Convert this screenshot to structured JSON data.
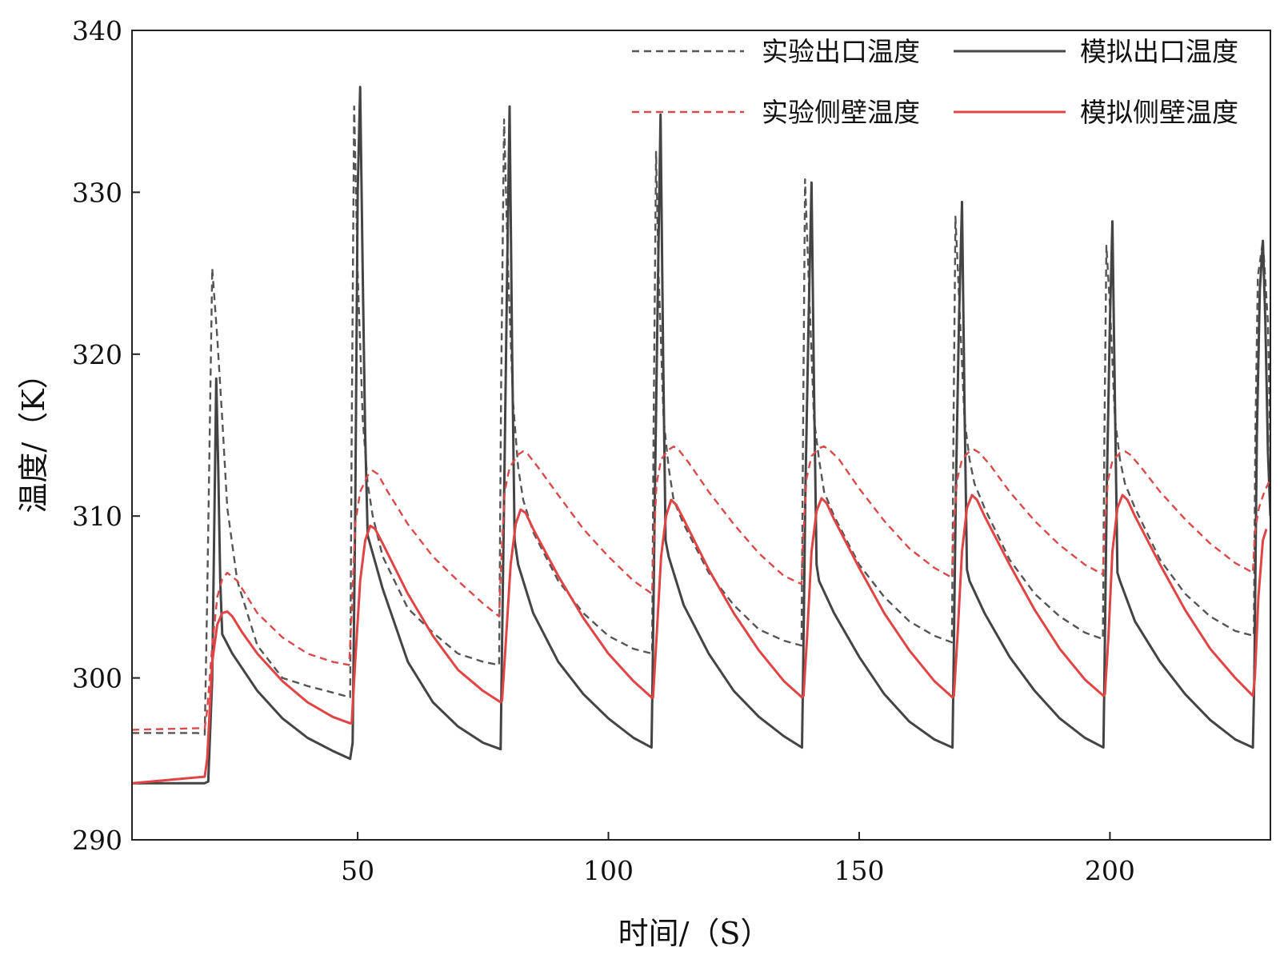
{
  "chart_data": {
    "type": "line",
    "xlabel": "时间/（S）",
    "ylabel": "温度/（K）",
    "xlim": [
      5,
      232
    ],
    "ylim": [
      290,
      340
    ],
    "xticks": [
      50,
      100,
      150,
      200
    ],
    "yticks": [
      290,
      300,
      310,
      320,
      330,
      340
    ],
    "grid": false,
    "legend_position": "top-right",
    "series": [
      {
        "name": "实验出口温度",
        "color": "#555555",
        "dash": true,
        "x": [
          5,
          18,
          19.5,
          20,
          21,
          22,
          23,
          24,
          26,
          30,
          35,
          40,
          45,
          48.5,
          48.8,
          49.3,
          50,
          51,
          52,
          53,
          55,
          60,
          65,
          70,
          75,
          78.2,
          78.6,
          79.2,
          80,
          81,
          82,
          83,
          85,
          90,
          95,
          100,
          105,
          108.7,
          109,
          109.5,
          110,
          111,
          112,
          113,
          115,
          120,
          125,
          130,
          135,
          138.5,
          138.8,
          139.2,
          140,
          141,
          142,
          143,
          145,
          150,
          155,
          160,
          165,
          168.5,
          168.8,
          169.2,
          170,
          171,
          172,
          173,
          175,
          180,
          185,
          190,
          195,
          198.6,
          198.9,
          199.3,
          200,
          201,
          202,
          203,
          205,
          210,
          215,
          220,
          225,
          228.7,
          229,
          229.5,
          230.5,
          231.5,
          232
        ],
        "y": [
          296.6,
          296.6,
          296.5,
          305,
          325.3,
          321,
          316,
          310.5,
          306,
          302,
          300,
          299.5,
          299.1,
          298.8,
          315,
          335.3,
          325,
          316,
          312,
          310,
          307.5,
          304.3,
          302.8,
          301.5,
          301,
          300.8,
          318,
          334.5,
          325,
          317,
          313,
          311,
          309,
          306,
          304,
          302.6,
          301.8,
          301.5,
          315,
          332.5,
          325,
          316,
          313,
          311,
          309.5,
          306.5,
          304.5,
          303,
          302.3,
          302,
          315,
          330.8,
          324,
          316,
          313.5,
          311.5,
          310,
          307,
          305,
          303.5,
          302.6,
          302.2,
          315,
          328.5,
          323,
          316,
          313.5,
          312,
          310.5,
          307.3,
          305.2,
          303.8,
          302.8,
          302.4,
          315,
          326.7,
          323,
          316,
          313.5,
          312,
          310.5,
          307.3,
          305.2,
          303.8,
          302.9,
          302.6,
          315,
          324.8,
          327,
          322,
          314
        ]
      },
      {
        "name": "模拟出口温度",
        "color": "#444444",
        "dash": false,
        "x": [
          5,
          19.5,
          20.2,
          21,
          21.8,
          22.2,
          22.6,
          23,
          25,
          30,
          35,
          40,
          45,
          48.5,
          49,
          49.5,
          50,
          50.5,
          51,
          51.5,
          52,
          55,
          60,
          65,
          70,
          75,
          78.5,
          78.7,
          79.2,
          79.8,
          80.3,
          80.8,
          81.3,
          82,
          85,
          90,
          95,
          100,
          105,
          108.6,
          108.8,
          109.3,
          109.9,
          110.4,
          110.9,
          111.4,
          112,
          115,
          120,
          125,
          130,
          135,
          138.6,
          138.8,
          139.3,
          139.9,
          140.5,
          141,
          141.5,
          142,
          145,
          150,
          155,
          160,
          165,
          168.6,
          168.8,
          169.3,
          169.9,
          170.5,
          171,
          171.5,
          172,
          175,
          180,
          185,
          190,
          195,
          198.7,
          198.9,
          199.4,
          200,
          200.5,
          201,
          201.5,
          202,
          205,
          210,
          215,
          220,
          225,
          228.5,
          228.8,
          229.3,
          229.9,
          230.5,
          231,
          231.5,
          232
        ],
        "y": [
          293.5,
          293.5,
          293.6,
          300,
          318.5,
          313,
          306,
          302.7,
          301.5,
          299.2,
          297.5,
          296.3,
          295.5,
          295,
          296,
          310,
          330,
          336.5,
          325,
          315,
          308.8,
          305.5,
          301,
          298.5,
          297,
          296,
          295.6,
          300,
          311,
          325,
          335.3,
          320,
          308.5,
          307,
          304,
          301,
          299,
          297.5,
          296.3,
          295.7,
          300,
          312,
          325,
          334.8,
          320,
          308.5,
          307.5,
          304.5,
          301.5,
          299.2,
          297.6,
          296.4,
          295.7,
          300,
          312,
          322,
          330.6,
          318,
          307,
          306,
          304,
          301.3,
          299,
          297.3,
          296.2,
          295.7,
          300,
          312,
          322,
          329.4,
          317,
          306.7,
          306,
          304,
          301.3,
          299.2,
          297.5,
          296.3,
          295.7,
          300,
          312,
          322,
          328.2,
          317,
          306.5,
          306,
          303.5,
          301,
          299,
          297.4,
          296.2,
          295.7,
          300,
          315,
          324,
          327,
          322,
          314,
          310
        ]
      },
      {
        "name": "实验侧壁温度",
        "color": "#d94a4a",
        "dash": true,
        "x": [
          5,
          19.5,
          20,
          21,
          22,
          23,
          24,
          26,
          30,
          35,
          40,
          45,
          48.3,
          48.8,
          49.5,
          50.5,
          52,
          53,
          54,
          56,
          60,
          65,
          70,
          75,
          78.2,
          78.6,
          79.3,
          80.3,
          82,
          83,
          84,
          86,
          90,
          95,
          100,
          105,
          108.7,
          109,
          109.6,
          110.5,
          112,
          113,
          114,
          116,
          120,
          125,
          130,
          135,
          138.5,
          138.8,
          139.5,
          140.5,
          142,
          143,
          144,
          146,
          150,
          155,
          160,
          165,
          168.5,
          168.8,
          169.5,
          170.5,
          172,
          173,
          174,
          176,
          180,
          185,
          190,
          195,
          198.6,
          198.9,
          199.6,
          200.5,
          202,
          203,
          204,
          206,
          210,
          215,
          220,
          225,
          228.5,
          228.9,
          229.7,
          230.8,
          232
        ],
        "y": [
          296.8,
          296.9,
          298,
          302,
          305,
          306.1,
          306.5,
          306,
          304,
          302.5,
          301.5,
          301,
          300.8,
          304,
          309.5,
          311.5,
          312.5,
          312.8,
          312.6,
          311.5,
          309.5,
          307.5,
          306,
          304.6,
          303.8,
          307,
          311.5,
          313,
          313.8,
          314,
          313.8,
          313,
          311.3,
          309.2,
          307.5,
          306,
          305.2,
          308,
          312,
          313.5,
          314.1,
          314.3,
          314.1,
          313.3,
          311.5,
          309.5,
          307.7,
          306.3,
          305.8,
          308.5,
          312.3,
          313.7,
          314.2,
          314.3,
          314.1,
          313.5,
          311.7,
          309.7,
          308,
          306.8,
          306.2,
          309,
          312.2,
          313.5,
          314,
          314.1,
          313.9,
          313.2,
          311.5,
          309.7,
          308.2,
          307,
          306.4,
          309,
          312.2,
          313.4,
          313.9,
          314,
          313.8,
          313.1,
          311.5,
          309.8,
          308.3,
          307.1,
          306.5,
          309,
          310.5,
          311.5,
          312.3
        ]
      },
      {
        "name": "模拟侧壁温度",
        "color": "#e04444",
        "dash": false,
        "x": [
          5,
          19.5,
          20,
          21,
          22,
          23,
          24,
          25,
          27,
          30,
          35,
          40,
          45,
          48.5,
          48.8,
          49.5,
          50.5,
          51.5,
          52.5,
          53.5,
          55,
          60,
          65,
          70,
          75,
          78.5,
          78.8,
          79.5,
          80.5,
          81.5,
          82.5,
          83.5,
          85,
          90,
          95,
          100,
          105,
          108.6,
          108.9,
          109.6,
          110.5,
          111.5,
          112.5,
          113.5,
          115,
          120,
          125,
          130,
          135,
          138.6,
          138.9,
          139.6,
          140.5,
          141.5,
          142.5,
          143.5,
          145,
          150,
          155,
          160,
          165,
          168.6,
          168.9,
          169.6,
          170.5,
          171.5,
          172.5,
          173.5,
          175,
          180,
          185,
          190,
          195,
          198.7,
          199,
          199.7,
          200.5,
          201.5,
          202.5,
          203.5,
          205,
          210,
          215,
          220,
          225,
          228.5,
          228.9,
          229.6,
          230.5,
          231.2
        ],
        "y": [
          293.5,
          293.9,
          295,
          301,
          303.3,
          304,
          304.1,
          303.8,
          302.8,
          301.5,
          299.8,
          298.5,
          297.6,
          297.2,
          297.2,
          301,
          306,
          308.5,
          309.4,
          309.2,
          308.3,
          305.2,
          302.6,
          300.5,
          299.2,
          298.5,
          298.6,
          302,
          307,
          309.5,
          310.4,
          310.2,
          309.2,
          306.3,
          303.7,
          301.5,
          299.8,
          298.8,
          298.8,
          302.5,
          307.5,
          310,
          311,
          310.7,
          309.8,
          306.7,
          304,
          301.7,
          299.8,
          298.8,
          298.9,
          302.5,
          307.8,
          310.3,
          311.1,
          310.8,
          309.8,
          306.8,
          304,
          301.7,
          299.8,
          298.8,
          298.9,
          302.5,
          307.8,
          310.5,
          311.3,
          311,
          310,
          307,
          304.2,
          301.8,
          299.9,
          298.9,
          299,
          302.5,
          307.8,
          310.5,
          311.3,
          311,
          310,
          307,
          304.2,
          301.8,
          300,
          298.9,
          300,
          305,
          308.5,
          309.2
        ]
      }
    ]
  }
}
